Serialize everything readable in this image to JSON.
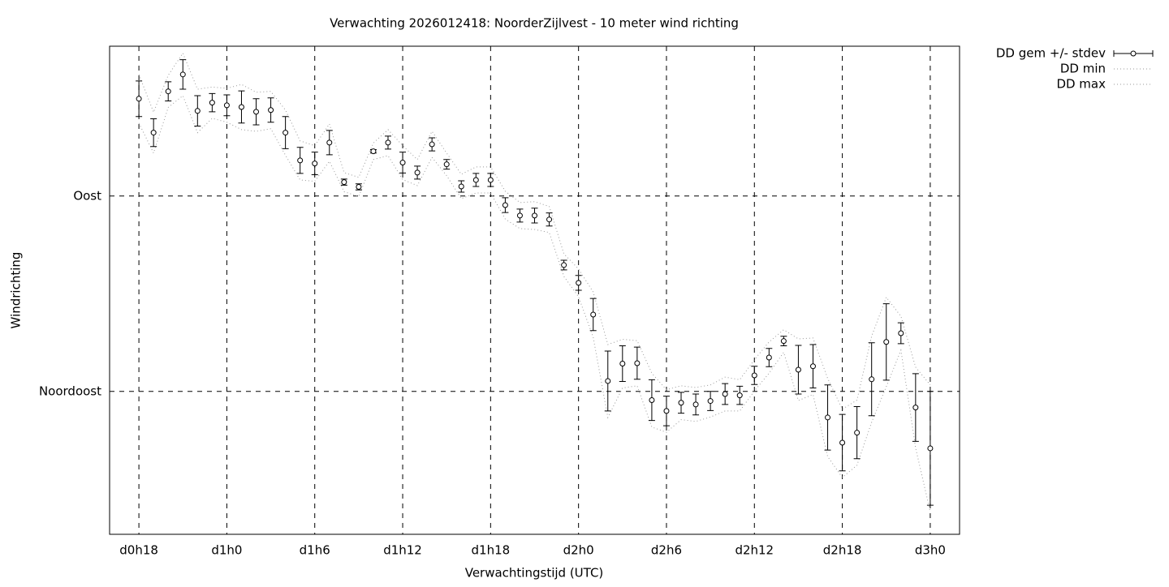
{
  "chart_data": {
    "type": "errorbar",
    "title": "Verwachting 2026012418: NoorderZijlvest - 10 meter wind richting",
    "xlabel": "Verwachtingstijd (UTC)",
    "ylabel": "Windrichting",
    "x": [
      18,
      19,
      20,
      21,
      22,
      23,
      24,
      25,
      26,
      27,
      28,
      29,
      30,
      31,
      32,
      33,
      34,
      35,
      36,
      37,
      38,
      39,
      40,
      41,
      42,
      43,
      44,
      45,
      46,
      47,
      48,
      49,
      50,
      51,
      52,
      53,
      54,
      55,
      56,
      57,
      58,
      59,
      60,
      61,
      62,
      63,
      64,
      65,
      66,
      67,
      68,
      69,
      70,
      71,
      72
    ],
    "series": [
      {
        "name": "DD gem +/- stdev",
        "color": "#000000",
        "values": [
          112.4,
          104.6,
          114.1,
          118.0,
          109.6,
          111.5,
          110.9,
          110.5,
          109.4,
          109.8,
          104.6,
          98.2,
          97.5,
          102.3,
          93.2,
          92.1,
          100.3,
          102.3,
          97.7,
          95.4,
          101.9,
          97.3,
          92.2,
          93.7,
          93.7,
          87.9,
          85.5,
          85.5,
          84.6,
          74.1,
          70.0,
          62.7,
          47.4,
          51.4,
          51.5,
          43.0,
          40.5,
          42.4,
          42.0,
          42.8,
          44.4,
          44.1,
          48.7,
          52.8,
          56.6,
          50.0,
          50.8,
          39.0,
          33.2,
          35.5,
          47.8,
          56.4,
          58.4,
          41.3,
          31.9
        ],
        "errors": [
          4.1,
          3.2,
          2.2,
          3.4,
          3.5,
          2.1,
          2.4,
          3.7,
          3.0,
          2.8,
          3.7,
          3.0,
          2.6,
          2.8,
          0.7,
          0.7,
          0.4,
          1.5,
          2.4,
          1.5,
          1.5,
          1.1,
          1.3,
          1.5,
          1.5,
          1.7,
          1.5,
          1.7,
          1.5,
          1.1,
          1.7,
          3.7,
          6.9,
          4.1,
          3.7,
          4.7,
          3.4,
          2.4,
          2.4,
          2.2,
          2.4,
          2.1,
          2.1,
          2.1,
          1.1,
          5.6,
          5.0,
          7.5,
          6.5,
          6.0,
          8.4,
          8.8,
          2.4,
          7.8,
          13.1
        ]
      },
      {
        "name": "DD min",
        "color": "#999999",
        "values": [
          106.8,
          99.9,
          110.4,
          113.1,
          104.6,
          107.9,
          107.0,
          105.3,
          104.9,
          105.5,
          99.4,
          93.7,
          93.4,
          98.0,
          91.0,
          89.9,
          98.4,
          99.3,
          93.8,
          92.4,
          98.9,
          94.7,
          89.4,
          90.7,
          90.7,
          84.7,
          82.5,
          82.3,
          81.6,
          71.5,
          66.8,
          57.5,
          39.0,
          45.8,
          46.3,
          36.8,
          35.6,
          38.5,
          38.1,
          39.1,
          40.5,
          40.5,
          45.1,
          49.2,
          54.0,
          42.9,
          44.3,
          30.0,
          25.2,
          28.0,
          37.9,
          46.1,
          54.5,
          32.0,
          17.3
        ]
      },
      {
        "name": "DD max",
        "color": "#999999",
        "values": [
          118.0,
          109.3,
          117.8,
          122.9,
          114.6,
          115.1,
          114.8,
          115.7,
          113.9,
          114.1,
          109.8,
          102.7,
          101.6,
          106.6,
          95.4,
          94.3,
          102.2,
          105.3,
          101.6,
          98.4,
          104.9,
          99.9,
          95.0,
          96.7,
          96.7,
          91.1,
          88.5,
          88.7,
          87.6,
          76.7,
          73.2,
          67.9,
          55.8,
          57.0,
          56.7,
          49.2,
          45.4,
          46.3,
          45.9,
          46.5,
          48.3,
          47.7,
          52.3,
          56.4,
          59.2,
          57.1,
          57.3,
          48.0,
          40.9,
          43.0,
          57.7,
          66.7,
          62.3,
          50.6,
          46.5
        ]
      }
    ],
    "xlim": [
      16,
      74
    ],
    "xticks": [
      {
        "value": 18,
        "label": "d0h18"
      },
      {
        "value": 24,
        "label": "d1h0"
      },
      {
        "value": 30,
        "label": "d1h6"
      },
      {
        "value": 36,
        "label": "d1h12"
      },
      {
        "value": 42,
        "label": "d1h18"
      },
      {
        "value": 48,
        "label": "d2h0"
      },
      {
        "value": 54,
        "label": "d2h6"
      },
      {
        "value": 60,
        "label": "d2h12"
      },
      {
        "value": 66,
        "label": "d2h18"
      },
      {
        "value": 72,
        "label": "d3h0"
      }
    ],
    "ylim": [
      12.1,
      124.5
    ],
    "yticks": [
      {
        "value": 45,
        "label": "Noordoost"
      },
      {
        "value": 90,
        "label": "Oost"
      }
    ],
    "grid": true,
    "legend": "outside top right"
  }
}
